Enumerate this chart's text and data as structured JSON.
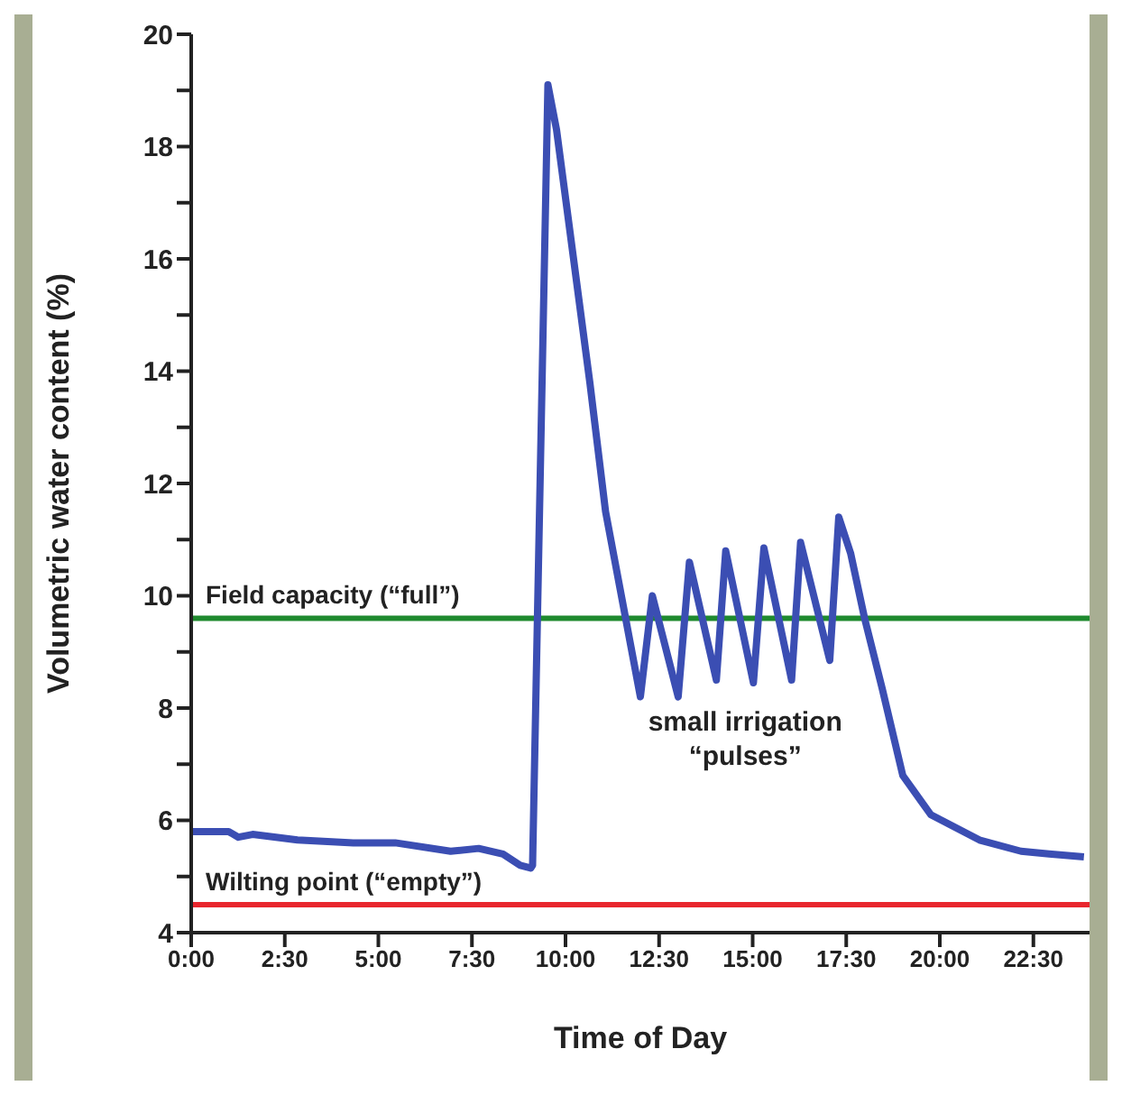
{
  "chart_data": {
    "type": "line",
    "xlabel": "Time of Day",
    "ylabel": "Volumetric water content (%)",
    "xlim": [
      0,
      24
    ],
    "xticks": [
      {
        "value": 0,
        "label": "0:00"
      },
      {
        "value": 2.5,
        "label": "2:30"
      },
      {
        "value": 5,
        "label": "5:00"
      },
      {
        "value": 7.5,
        "label": "7:30"
      },
      {
        "value": 10,
        "label": "10:00"
      },
      {
        "value": 12.5,
        "label": "12:30"
      },
      {
        "value": 15,
        "label": "15:00"
      },
      {
        "value": 17.5,
        "label": "17:30"
      },
      {
        "value": 20,
        "label": "20:00"
      },
      {
        "value": 22.5,
        "label": "22:30"
      }
    ],
    "ylim": [
      4,
      20
    ],
    "yticks": [
      4,
      {
        "value": 5,
        "label": null
      },
      6,
      {
        "value": 7,
        "label": null
      },
      8,
      {
        "value": 9,
        "label": null
      },
      10,
      {
        "value": 11,
        "label": null
      },
      12,
      {
        "value": 13,
        "label": null
      },
      14,
      {
        "value": 15,
        "label": null
      },
      16,
      {
        "value": 17,
        "label": null
      },
      18,
      {
        "value": 19,
        "label": null
      },
      20
    ],
    "grid": false,
    "marker": "none",
    "line_style": "solid",
    "series": [
      {
        "color": "#3b4eb3",
        "x": [
          0,
          1.0,
          1.26,
          1.64,
          2.84,
          4.33,
          5.45,
          6.93,
          7.68,
          8.33,
          8.79,
          9.07,
          9.12,
          9.53,
          9.76,
          10.65,
          11.07,
          12.0,
          12.32,
          13.01,
          13.31,
          14.03,
          14.28,
          15.02,
          15.3,
          16.04,
          16.28,
          17.06,
          17.3,
          17.62,
          17.99,
          18.46,
          19.01,
          19.76,
          21.06,
          22.17,
          22.92,
          23.85
        ],
        "values": [
          5.8,
          5.8,
          5.7,
          5.75,
          5.65,
          5.6,
          5.6,
          5.45,
          5.5,
          5.4,
          5.2,
          5.15,
          5.2,
          19.1,
          18.3,
          13.8,
          11.5,
          8.2,
          10.0,
          8.2,
          10.6,
          8.5,
          10.8,
          8.45,
          10.85,
          8.5,
          10.95,
          8.85,
          11.4,
          10.75,
          9.6,
          8.35,
          6.8,
          6.1,
          5.65,
          5.45,
          5.4,
          5.35
        ]
      }
    ],
    "ref_lines": [
      {
        "axis": "y",
        "value": 9.6,
        "label": "Field capacity (“full”)",
        "color": "#1e8a2e"
      },
      {
        "axis": "y",
        "value": 4.5,
        "label": "Wilting point (“empty”)",
        "color": "#e8262d"
      }
    ],
    "annotations": [
      "small irrigation\n“pulses”"
    ]
  }
}
